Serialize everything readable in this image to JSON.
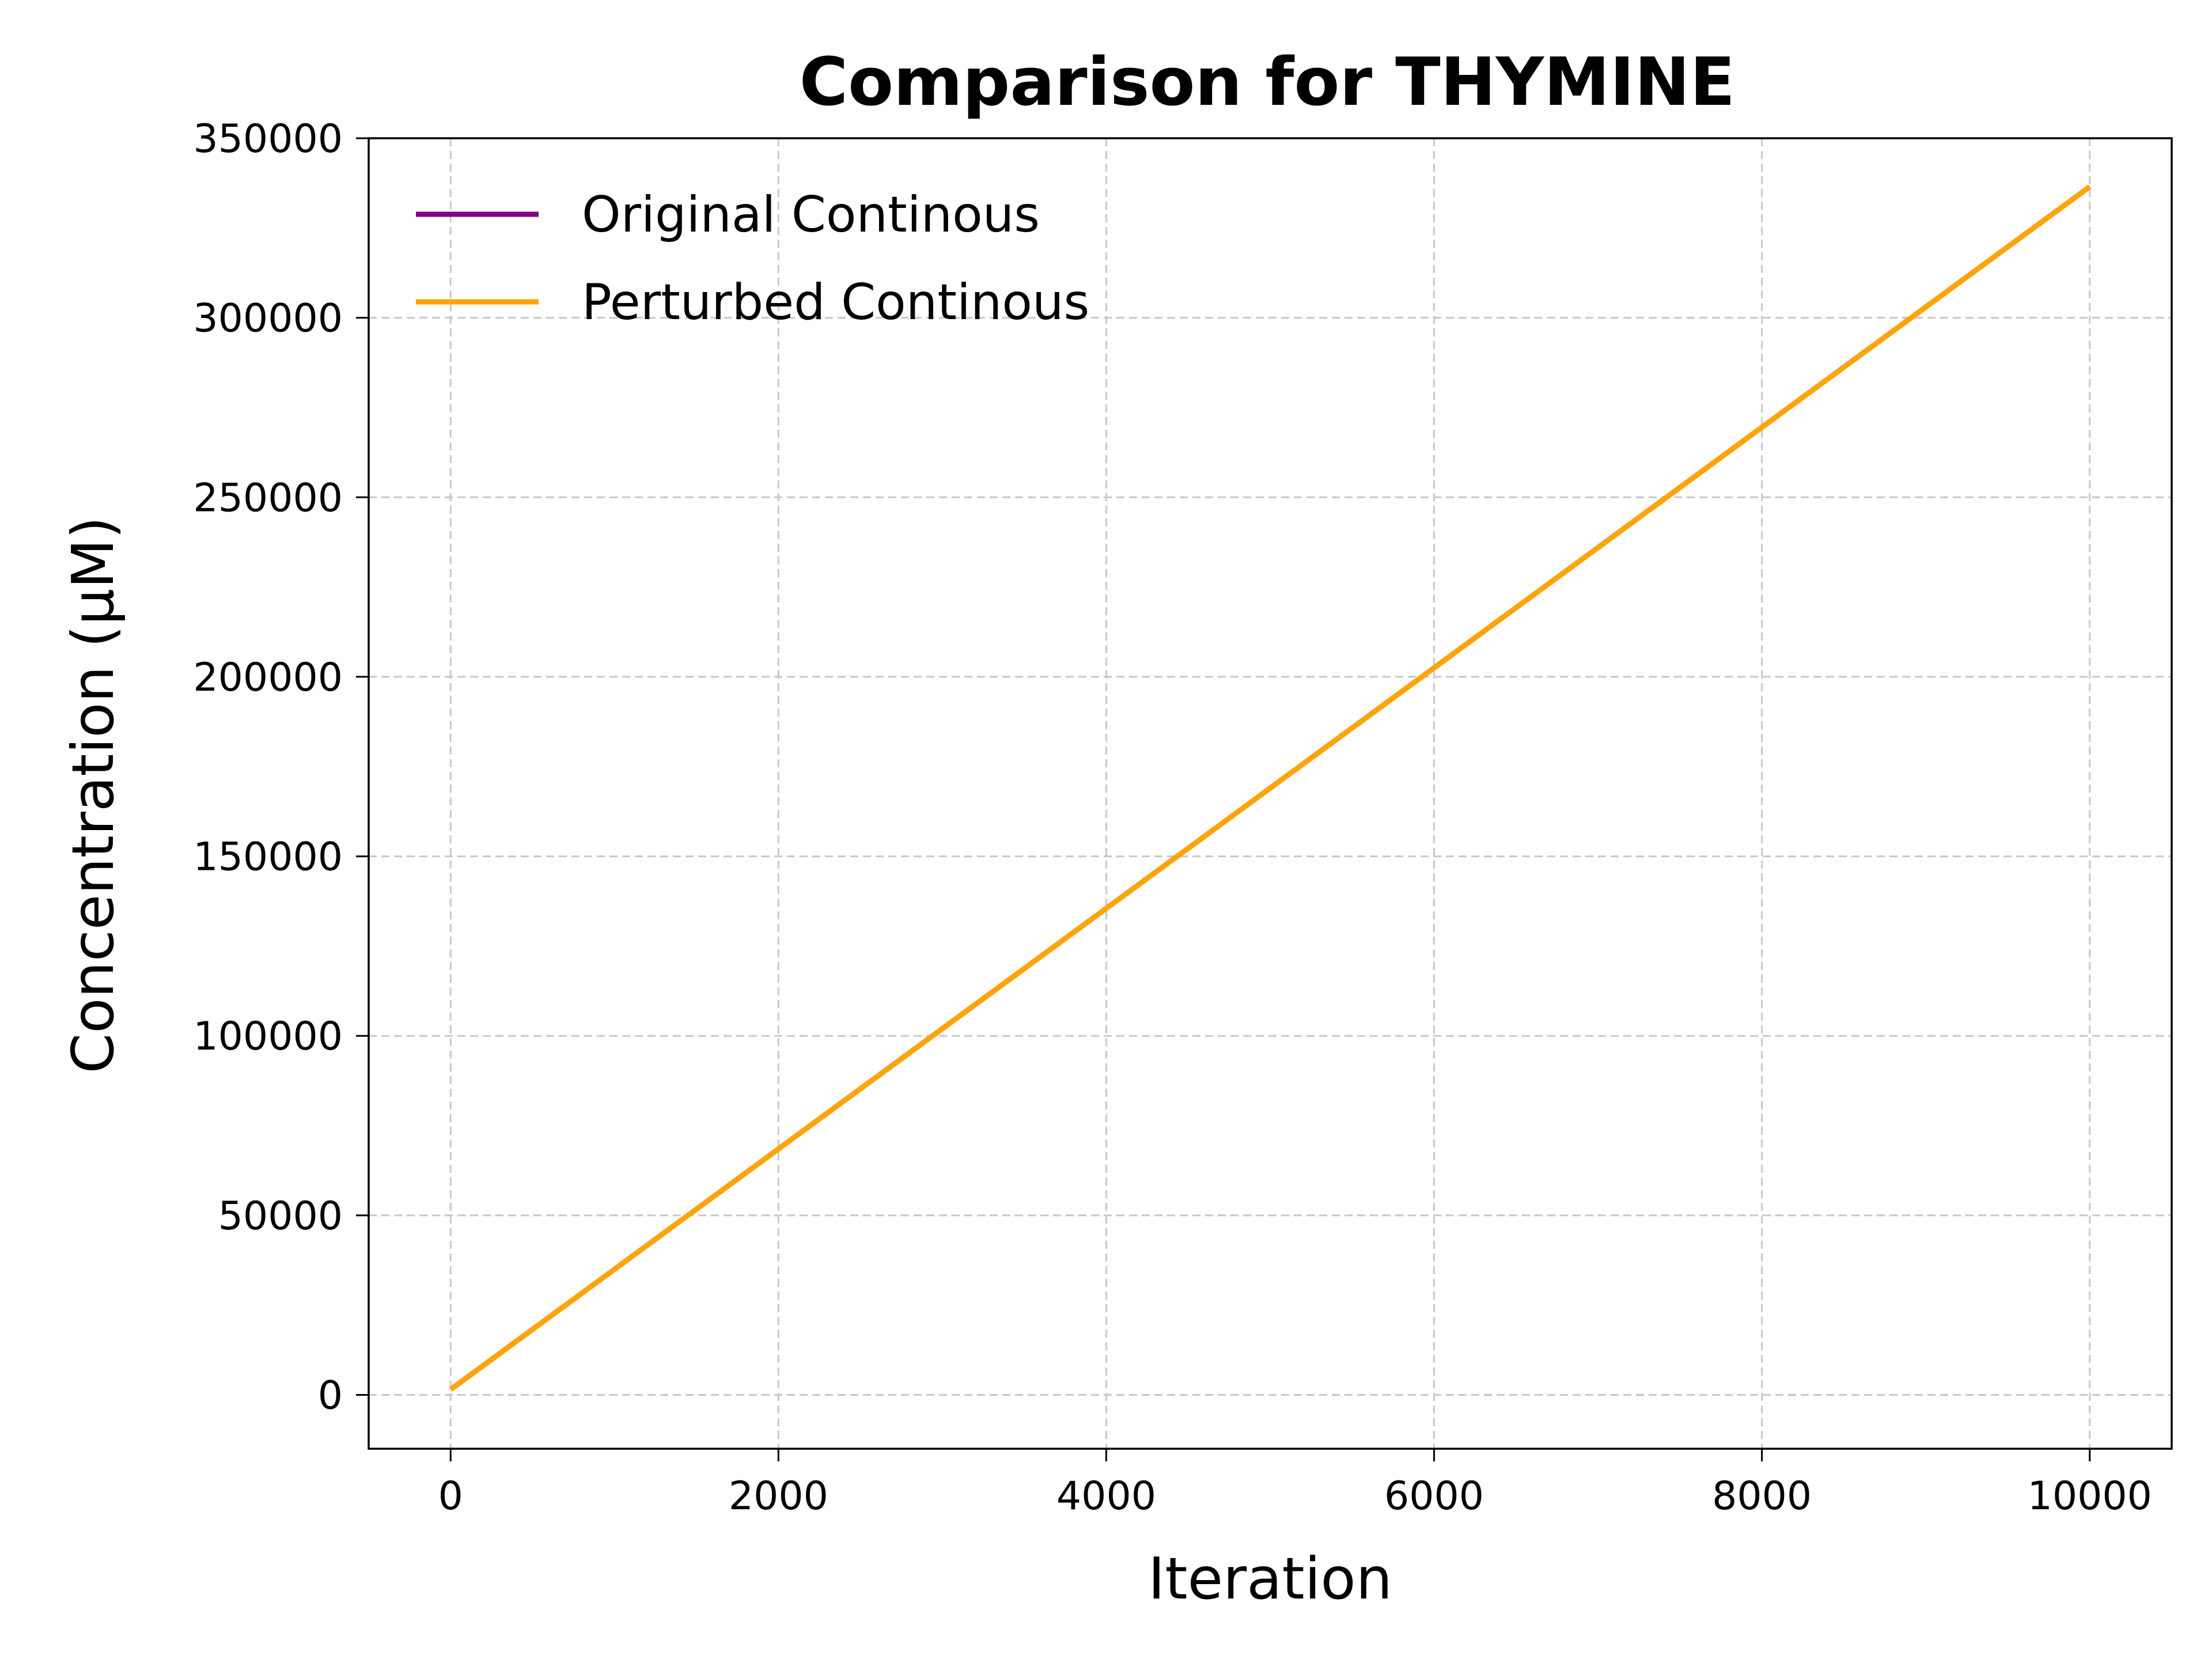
{
  "chart_data": {
    "type": "line",
    "title": "Comparison for THYMINE",
    "xlabel": "Iteration",
    "ylabel": "Concentration (μM)",
    "xlim": [
      -500,
      10500
    ],
    "ylim": [
      -15000,
      350000
    ],
    "xticks": [
      0,
      2000,
      4000,
      6000,
      8000,
      10000
    ],
    "yticks": [
      0,
      50000,
      100000,
      150000,
      200000,
      250000,
      300000,
      350000
    ],
    "grid": true,
    "legend_position": "top-left",
    "series": [
      {
        "name": "Original Continous",
        "color": "#800080",
        "x": [
          0,
          2000,
          4000,
          6000,
          8000,
          10000
        ],
        "y": [
          1500,
          68500,
          135500,
          202500,
          269500,
          336500
        ]
      },
      {
        "name": "Perturbed Continous",
        "color": "#FFA500",
        "x": [
          0,
          2000,
          4000,
          6000,
          8000,
          10000
        ],
        "y": [
          1500,
          68500,
          135500,
          202500,
          269500,
          336500
        ]
      }
    ]
  }
}
